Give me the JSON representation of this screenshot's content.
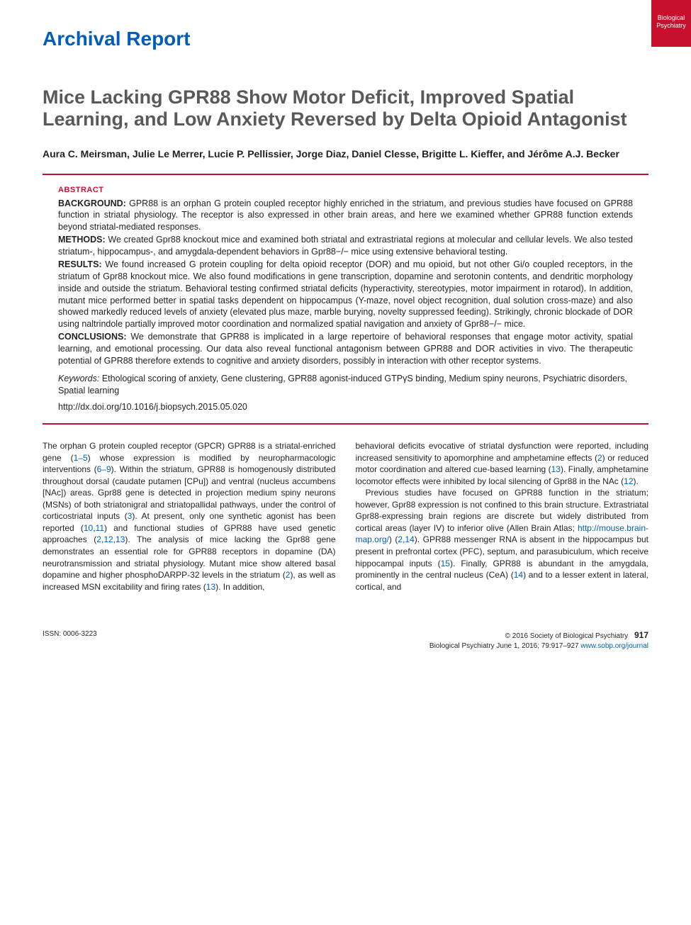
{
  "side_tab": {
    "line1": "Biological",
    "line2": "Psychiatry",
    "bg": "#c8102e",
    "fg": "#ffffff"
  },
  "section_label": "Archival Report",
  "title": "Mice Lacking GPR88 Show Motor Deficit, Improved Spatial Learning, and Low Anxiety Reversed by Delta Opioid Antagonist",
  "authors": "Aura C. Meirsman, Julie Le Merrer, Lucie P. Pellissier, Jorge Diaz, Daniel Clesse, Brigitte L. Kieffer, and Jérôme A.J. Becker",
  "abstract": {
    "label": "ABSTRACT",
    "background": {
      "head": "BACKGROUND:",
      "text": " GPR88 is an orphan G protein coupled receptor highly enriched in the striatum, and previous studies have focused on GPR88 function in striatal physiology. The receptor is also expressed in other brain areas, and here we examined whether GPR88 function extends beyond striatal-mediated responses."
    },
    "methods": {
      "head": "METHODS:",
      "text": " We created Gpr88 knockout mice and examined both striatal and extrastriatal regions at molecular and cellular levels. We also tested striatum-, hippocampus-, and amygdala-dependent behaviors in Gpr88−/− mice using extensive behavioral testing."
    },
    "results": {
      "head": "RESULTS:",
      "text": " We found increased G protein coupling for delta opioid receptor (DOR) and mu opioid, but not other Gi/o coupled receptors, in the striatum of Gpr88 knockout mice. We also found modifications in gene transcription, dopamine and serotonin contents, and dendritic morphology inside and outside the striatum. Behavioral testing confirmed striatal deficits (hyperactivity, stereotypies, motor impairment in rotarod). In addition, mutant mice performed better in spatial tasks dependent on hippocampus (Y-maze, novel object recognition, dual solution cross-maze) and also showed markedly reduced levels of anxiety (elevated plus maze, marble burying, novelty suppressed feeding). Strikingly, chronic blockade of DOR using naltrindole partially improved motor coordination and normalized spatial navigation and anxiety of Gpr88−/− mice."
    },
    "conclusions": {
      "head": "CONCLUSIONS:",
      "text": " We demonstrate that GPR88 is implicated in a large repertoire of behavioral responses that engage motor activity, spatial learning, and emotional processing. Our data also reveal functional antagonism between GPR88 and DOR activities in vivo. The therapeutic potential of GPR88 therefore extends to cognitive and anxiety disorders, possibly in interaction with other receptor systems."
    },
    "keywords": {
      "head": "Keywords:",
      "text": " Ethological scoring of anxiety, Gene clustering, GPR88 agonist-induced GTPγS binding, Medium spiny neurons, Psychiatric disorders, Spatial learning"
    },
    "doi": "http://dx.doi.org/10.1016/j.biopsych.2015.05.020"
  },
  "body": {
    "col1": {
      "p1_a": "The orphan G protein coupled receptor (GPCR) GPR88 is a striatal-enriched gene (",
      "p1_r1": "1–5",
      "p1_b": ") whose expression is modified by neuropharmacologic interventions (",
      "p1_r2": "6–9",
      "p1_c": "). Within the striatum, GPR88 is homogenously distributed throughout dorsal (caudate putamen [CPu]) and ventral (nucleus accumbens [NAc]) areas. Gpr88 gene is detected in projection medium spiny neurons (MSNs) of both striatonigral and striatopallidal pathways, under the control of corticostriatal inputs (",
      "p1_r3": "3",
      "p1_d": "). At present, only one synthetic agonist has been reported (",
      "p1_r4": "10",
      "p1_r4b": "11",
      "p1_e": ") and functional studies of GPR88 have used genetic approaches (",
      "p1_r5": "2",
      "p1_r5b": "12",
      "p1_r5c": "13",
      "p1_f": "). The analysis of mice lacking the Gpr88 gene demonstrates an essential role for GPR88 receptors in dopamine (DA) neurotransmission and striatal physiology. Mutant mice show altered basal dopamine and higher phosphoDARPP-32 levels in the striatum (",
      "p1_r6": "2",
      "p1_g": "), as well as increased MSN excitability and firing rates (",
      "p1_r7": "13",
      "p1_h": "). In addition,"
    },
    "col2": {
      "p1_a": "behavioral deficits evocative of striatal dysfunction were reported, including increased sensitivity to apomorphine and amphetamine effects (",
      "p1_r1": "2",
      "p1_b": ") or reduced motor coordination and altered cue-based learning (",
      "p1_r2": "13",
      "p1_c": "). Finally, amphetamine locomotor effects were inhibited by local silencing of Gpr88 in the NAc (",
      "p1_r3": "12",
      "p1_d": ").",
      "p2_a": "Previous studies have focused on GPR88 function in the striatum; however, Gpr88 expression is not confined to this brain structure. Extrastriatal Gpr88-expressing brain regions are discrete but widely distributed from cortical areas (layer IV) to inferior olive (Allen Brain Atlas; ",
      "p2_link": "http://mouse.brain-map.org/",
      "p2_b": ") (",
      "p2_r1": "2",
      "p2_r1b": "14",
      "p2_c": "). GPR88 messenger RNA is absent in the hippocampus but present in prefrontal cortex (PFC), septum, and parasubiculum, which receive hippocampal inputs (",
      "p2_r2": "15",
      "p2_d": "). Finally, GPR88 is abundant in the amygdala, prominently in the central nucleus (CeA) (",
      "p2_r3": "14",
      "p2_e": ") and to a lesser extent in lateral, cortical, and"
    }
  },
  "footer": {
    "issn": "ISSN: 0006-3223",
    "copyright": "© 2016 Society of Biological Psychiatry",
    "page_num": "917",
    "citation": "Biological Psychiatry June 1, 2016; 79:917–927 ",
    "journal_link": "www.sobp.org/journal"
  },
  "colors": {
    "brand_blue": "#005eb8",
    "brand_red": "#c8102e",
    "title_gray": "#58595b",
    "text": "#231f20",
    "bg": "#ffffff"
  }
}
